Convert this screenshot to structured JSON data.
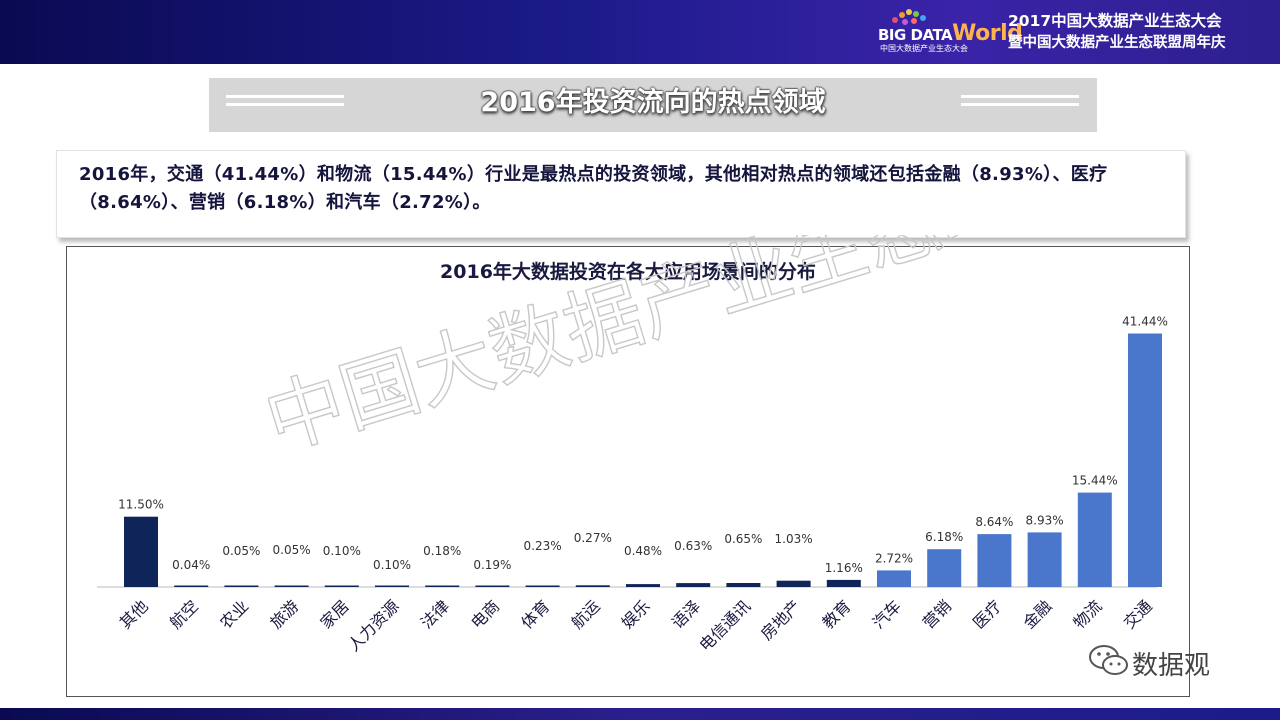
{
  "header": {
    "logo_text_big": "BIG DATA",
    "logo_text_world": "World",
    "logo_sub": "中国大数据产业生态大会",
    "conference_title": "2017中国大数据产业生态大会",
    "conference_subtitle": "暨中国大数据产业生态联盟周年庆"
  },
  "banner": {
    "title": "2016年投资流向的热点领域"
  },
  "summary": {
    "text": "2016年，交通（41.44%）和物流（15.44%）行业是最热点的投资领域，其他相对热点的领域还包括金融（8.93%）、医疗（8.64%）、营销（6.18%）和汽车（2.72%）。"
  },
  "watermark": {
    "text": "中国大数据产业生态联盟"
  },
  "wechat": {
    "label": "数据观"
  },
  "colors": {
    "dark_bar": "#0f2458",
    "light_bar": "#4a77cc",
    "header": "#1c1b8a"
  },
  "chart_data": {
    "type": "bar",
    "title": "2016年大数据投资在各大应用场景间的分布",
    "categories": [
      "其他",
      "航空",
      "农业",
      "旅游",
      "家居",
      "人力资源",
      "法律",
      "电商",
      "体育",
      "航运",
      "娱乐",
      "语泽",
      "电信通讯",
      "房地产",
      "教育",
      "汽车",
      "营销",
      "医疗",
      "金融",
      "物流",
      "交通"
    ],
    "values": [
      11.5,
      0.04,
      0.05,
      0.05,
      0.1,
      0.1,
      0.18,
      0.19,
      0.23,
      0.27,
      0.48,
      0.63,
      0.65,
      1.03,
      1.16,
      2.72,
      6.18,
      8.64,
      8.93,
      15.44,
      41.44
    ],
    "labels": [
      "11.50%",
      "0.04%",
      "0.05%",
      "0.05%",
      "0.10%",
      "0.10%",
      "0.18%",
      "0.19%",
      "0.23%",
      "0.27%",
      "0.48%",
      "0.63%",
      "0.65%",
      "1.03%",
      "1.16%",
      "2.72%",
      "6.18%",
      "8.64%",
      "8.93%",
      "15.44%",
      "41.44%"
    ],
    "bar_color_group": [
      "dark",
      "dark",
      "dark",
      "dark",
      "dark",
      "dark",
      "dark",
      "dark",
      "dark",
      "dark",
      "dark",
      "dark",
      "dark",
      "dark",
      "dark",
      "light",
      "light",
      "light",
      "light",
      "light",
      "light"
    ],
    "ylim": [
      0,
      45
    ],
    "xlabel": "",
    "ylabel": "",
    "grid": false,
    "legend": "none"
  }
}
